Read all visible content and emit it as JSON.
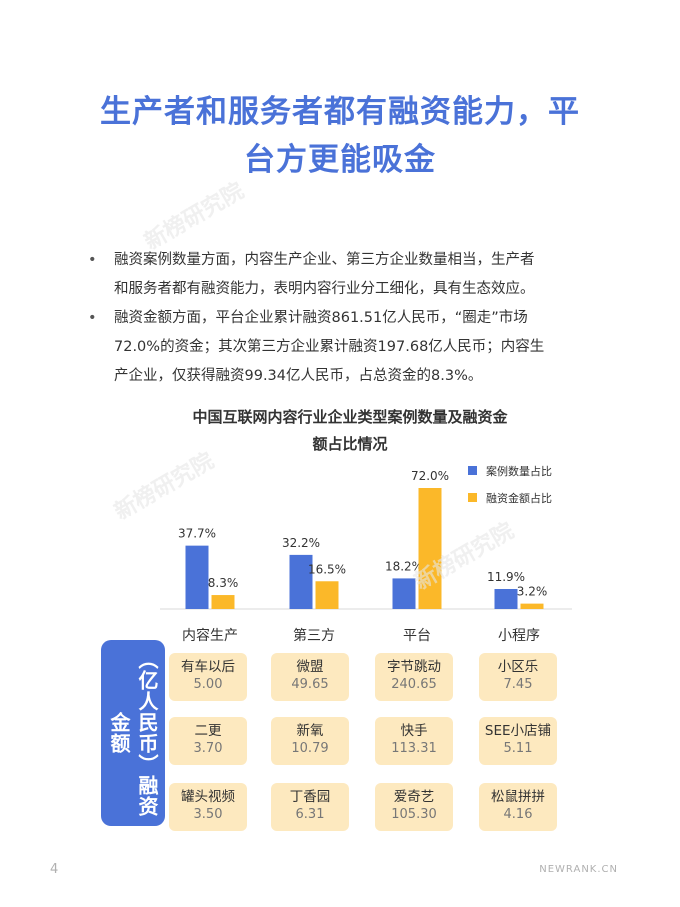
{
  "page": {
    "title_lines": [
      "生产者和服务者都有融资能力，平",
      "台方更能吸金"
    ],
    "bullets": [
      [
        "融资案例数量方面，内容生产企业、第三方企业数量相当，生产者",
        "和服务者都有融资能力，表明内容行业分工细化，具有生态效应。"
      ],
      [
        "融资金额方面，平台企业累计融资861.51亿人民币，“圈走”市场",
        "72.0%的资金；其次第三方企业累计融资197.68亿人民币；内容生",
        "产企业，仅获得融资99.34亿人民币，占总资金的8.3%。"
      ]
    ],
    "chart_title_lines": [
      "中国互联网内容行业企业类型案例数量及融资金",
      "额占比情况"
    ],
    "side_label": "（亿人民币）融资金额",
    "page_number": "4",
    "footer_brand": "NEWRANK.CN",
    "watermark": "新榜研究院",
    "cards": [
      [
        {
          "name": "有车以后",
          "value": "5.00"
        },
        {
          "name": "微盟",
          "value": "49.65"
        },
        {
          "name": "字节跳动",
          "value": "240.65"
        },
        {
          "name": "小区乐",
          "value": "7.45"
        }
      ],
      [
        {
          "name": "二更",
          "value": "3.70"
        },
        {
          "name": "新氧",
          "value": "10.79"
        },
        {
          "name": "快手",
          "value": "113.31"
        },
        {
          "name": "SEE小店铺",
          "value": "5.11"
        }
      ],
      [
        {
          "name": "罐头视频",
          "value": "3.50"
        },
        {
          "name": "丁香园",
          "value": "6.31"
        },
        {
          "name": "爱奇艺",
          "value": "105.30"
        },
        {
          "name": "松鼠拼拼",
          "value": "4.16"
        }
      ]
    ],
    "colors": {
      "blue": "#4a72d8",
      "yellow": "#fbb829",
      "card": "#fde9bf"
    }
  },
  "chart_data": {
    "type": "bar",
    "categories": [
      "内容生产",
      "第三方",
      "平台",
      "小程序"
    ],
    "series": [
      {
        "name": "案例数量占比",
        "values": [
          37.7,
          32.2,
          18.2,
          11.9
        ],
        "labels": [
          "37.7%",
          "32.2%",
          "18.2%",
          "11.9%"
        ],
        "color": "#4a72d8"
      },
      {
        "name": "融资金额占比",
        "values": [
          8.3,
          16.5,
          72.0,
          3.2
        ],
        "labels": [
          "8.3%",
          "16.5%",
          "72.0%",
          "3.2%"
        ],
        "color": "#fbb829"
      }
    ],
    "ylim": [
      0,
      72
    ],
    "legend": "top-right",
    "grid": false
  }
}
